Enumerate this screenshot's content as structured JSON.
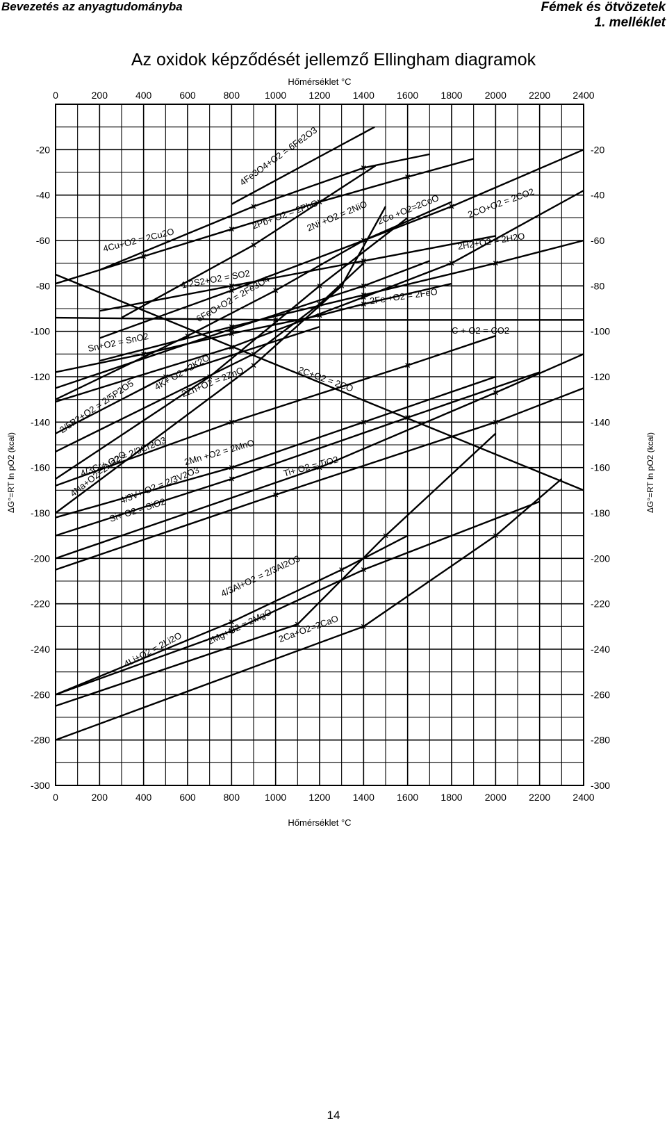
{
  "header": {
    "left_title": "Bevezetés az anyagtudományba",
    "right_title": "Fémek és ötvözetek",
    "right_subtitle": "1. melléklet"
  },
  "page_title": "Az oxidok képződését jellemző Ellingham diagramok",
  "page_number": "14",
  "colors": {
    "ink": "#000000",
    "grid": "#000000",
    "background": "#ffffff"
  },
  "chart_data": {
    "type": "line",
    "title": "Az oxidok képződését jellemző Ellingham diagramok",
    "top_axis_label": "Hőmérséklet °C",
    "bottom_axis_label": "Hőmérséklet °C",
    "ylabel": "ΔG°=RT ln pO2 (kcal)",
    "xlim": [
      0,
      2400
    ],
    "ylim": [
      -300,
      0
    ],
    "x_ticks": [
      "0",
      "200",
      "400",
      "600",
      "800",
      "1000",
      "1200",
      "1400",
      "1600",
      "1800",
      "2000",
      "2200",
      "2400"
    ],
    "y_ticks_left": [
      "-20",
      "-40",
      "-60",
      "-80",
      "-100",
      "-120",
      "-140",
      "-160",
      "-180",
      "-200",
      "-220",
      "-240",
      "-260",
      "-280",
      "-300"
    ],
    "y_ticks_right": [
      "-20",
      "-40",
      "-60",
      "-80",
      "-100",
      "-120",
      "-140",
      "-160",
      "-180",
      "-200",
      "-220",
      "-240",
      "-260",
      "-280",
      "-300"
    ],
    "grid": true,
    "series": [
      {
        "name": "4Fe3O4+O2 = 6Fe2O3",
        "label_at": [
          850,
          -36
        ],
        "label_angle": -36,
        "points": [
          [
            800,
            -44
          ],
          [
            1450,
            -10
          ]
        ]
      },
      {
        "name": "2Pb+ O2 = 2PbO",
        "label_at": [
          900,
          -55
        ],
        "label_angle": -20,
        "points": [
          [
            200,
            -73
          ],
          [
            900,
            -45
          ],
          [
            1400,
            -28
          ],
          [
            1700,
            -22
          ]
        ]
      },
      {
        "name": "2Ni +O2 = 2NiO",
        "label_at": [
          1150,
          -56
        ],
        "label_angle": -23,
        "points": [
          [
            300,
            -94
          ],
          [
            900,
            -62
          ],
          [
            1455,
            -27
          ]
        ]
      },
      {
        "name": "2Co +O2=2CoO",
        "label_at": [
          1470,
          -53
        ],
        "label_angle": -22,
        "points": [
          [
            200,
            -103
          ],
          [
            800,
            -82
          ],
          [
            1400,
            -60
          ],
          [
            1800,
            -45
          ],
          [
            2400,
            -20
          ]
        ]
      },
      {
        "name": "2CO+O2 = 2CO2",
        "label_at": [
          1880,
          -50
        ],
        "label_angle": -20,
        "points": [
          [
            0,
            -131
          ],
          [
            800,
            -107
          ],
          [
            1400,
            -85
          ],
          [
            1800,
            -70
          ],
          [
            2400,
            -38
          ]
        ]
      },
      {
        "name": "4Cu+O2 = 2Cu2O",
        "label_at": [
          220,
          -65
        ],
        "label_angle": -14,
        "points": [
          [
            0,
            -79
          ],
          [
            400,
            -67
          ],
          [
            800,
            -55
          ],
          [
            1200,
            -43
          ],
          [
            1600,
            -32
          ],
          [
            1900,
            -24
          ]
        ]
      },
      {
        "name": "2H2+O2 = 2H2O",
        "label_at": [
          1830,
          -64
        ],
        "label_angle": -9,
        "points": [
          [
            200,
            -113
          ],
          [
            800,
            -98
          ],
          [
            1400,
            -84
          ],
          [
            2000,
            -70
          ],
          [
            2400,
            -60
          ]
        ]
      },
      {
        "name": "1/2S2+O2 = SO2",
        "label_at": [
          575,
          -81
        ],
        "label_angle": -10,
        "points": [
          [
            200,
            -91
          ],
          [
            800,
            -80
          ],
          [
            1400,
            -69
          ],
          [
            2000,
            -58
          ]
        ]
      },
      {
        "name": "6FeO+O2 = 2Fe3O4",
        "label_at": [
          650,
          -96
        ],
        "label_angle": -30,
        "points": [
          [
            0,
            -130
          ],
          [
            600,
            -102
          ],
          [
            1000,
            -82
          ],
          [
            1400,
            -60
          ],
          [
            1800,
            -43
          ]
        ]
      },
      {
        "name": "2Fe +O2 = 2FeO",
        "label_at": [
          1430,
          -88
        ],
        "label_angle": -8,
        "points": [
          [
            0,
            -118
          ],
          [
            400,
            -110
          ],
          [
            800,
            -101
          ],
          [
            1200,
            -93
          ],
          [
            1400,
            -88
          ],
          [
            1800,
            -79
          ]
        ]
      },
      {
        "name": "C + O2 = CO2",
        "label_at": [
          1800,
          -101
        ],
        "label_angle": 0,
        "points": [
          [
            0,
            -94
          ],
          [
            1000,
            -95
          ],
          [
            2400,
            -95
          ]
        ]
      },
      {
        "name": "Sn+O2 = SnO2",
        "label_at": [
          150,
          -109
        ],
        "label_angle": -12,
        "points": [
          [
            0,
            -125
          ],
          [
            800,
            -99
          ],
          [
            1400,
            -80
          ],
          [
            1700,
            -69
          ]
        ]
      },
      {
        "name": "2C+O2 = 2CO",
        "label_at": [
          1100,
          -118
        ],
        "label_angle": 20,
        "points": [
          [
            0,
            -75
          ],
          [
            2400,
            -170
          ]
        ]
      },
      {
        "name": "4K+ O2 =2K2O",
        "label_at": [
          460,
          -126
        ],
        "label_angle": -30,
        "points": [
          [
            0,
            -165
          ],
          [
            700,
            -120
          ],
          [
            1200,
            -80
          ],
          [
            1600,
            -50
          ]
        ]
      },
      {
        "name": "2Zn+O2 = 2ZnO",
        "label_at": [
          580,
          -129
        ],
        "label_angle": -22,
        "points": [
          [
            0,
            -153
          ],
          [
            900,
            -110
          ],
          [
            1200,
            -88
          ],
          [
            1400,
            -70
          ]
        ]
      },
      {
        "name": "2/5P2+O2 = 2/5P2O5",
        "label_at": [
          30,
          -145
        ],
        "label_angle": -34,
        "points": [
          [
            0,
            -145
          ],
          [
            500,
            -120
          ],
          [
            1200,
            -98
          ]
        ]
      },
      {
        "name": "4/3Cr+ O2 = 2/3Cr2O3",
        "label_at": [
          120,
          -164
        ],
        "label_angle": -22,
        "points": [
          [
            0,
            -168
          ],
          [
            800,
            -140
          ],
          [
            1600,
            -115
          ],
          [
            2000,
            -102
          ]
        ]
      },
      {
        "name": "2Mn +O2 = 2MnO",
        "label_at": [
          590,
          -159
        ],
        "label_angle": -16,
        "points": [
          [
            0,
            -182
          ],
          [
            800,
            -160
          ],
          [
            1400,
            -140
          ],
          [
            2000,
            -120
          ]
        ]
      },
      {
        "name": "4Na+O2=2Na2O",
        "label_at": [
          80,
          -173
        ],
        "label_angle": -38,
        "points": [
          [
            0,
            -180
          ],
          [
            900,
            -115
          ],
          [
            1300,
            -80
          ],
          [
            1500,
            -45
          ]
        ]
      },
      {
        "name": "Ti+ O2 = TiO2",
        "label_at": [
          1040,
          -164
        ],
        "label_angle": -15,
        "points": [
          [
            0,
            -200
          ],
          [
            1200,
            -160
          ],
          [
            2000,
            -127
          ],
          [
            2400,
            -110
          ]
        ]
      },
      {
        "name": "4/3V+ O2 = 2/3V2O3",
        "label_at": [
          300,
          -176
        ],
        "label_angle": -22,
        "points": [
          [
            0,
            -190
          ],
          [
            800,
            -165
          ],
          [
            1600,
            -138
          ],
          [
            2200,
            -118
          ]
        ]
      },
      {
        "name": "Si+ O2 = SiO2",
        "label_at": [
          250,
          -184
        ],
        "label_angle": -18,
        "points": [
          [
            0,
            -205
          ],
          [
            1000,
            -172
          ],
          [
            2000,
            -140
          ],
          [
            2400,
            -125
          ]
        ]
      },
      {
        "name": "4/3Al+O2 = 2/3Al2O3",
        "label_at": [
          760,
          -217
        ],
        "label_angle": -25,
        "points": [
          [
            0,
            -260
          ],
          [
            800,
            -232
          ],
          [
            1400,
            -205
          ],
          [
            2200,
            -175
          ]
        ]
      },
      {
        "name": "4Li+O2 = 2Li2O",
        "label_at": [
          320,
          -248
        ],
        "label_angle": -28,
        "points": [
          [
            0,
            -260
          ],
          [
            800,
            -228
          ],
          [
            1300,
            -205
          ],
          [
            1600,
            -190
          ]
        ]
      },
      {
        "name": "2Mg+O2 = 2MgO",
        "label_at": [
          700,
          -238
        ],
        "label_angle": -26,
        "points": [
          [
            0,
            -265
          ],
          [
            1100,
            -229
          ],
          [
            1500,
            -190
          ],
          [
            2000,
            -145
          ]
        ]
      },
      {
        "name": "2Ca+O2=2CaO",
        "label_at": [
          1020,
          -237
        ],
        "label_angle": -20,
        "points": [
          [
            0,
            -280
          ],
          [
            1400,
            -230
          ],
          [
            2000,
            -190
          ],
          [
            2300,
            -165
          ]
        ]
      }
    ]
  }
}
